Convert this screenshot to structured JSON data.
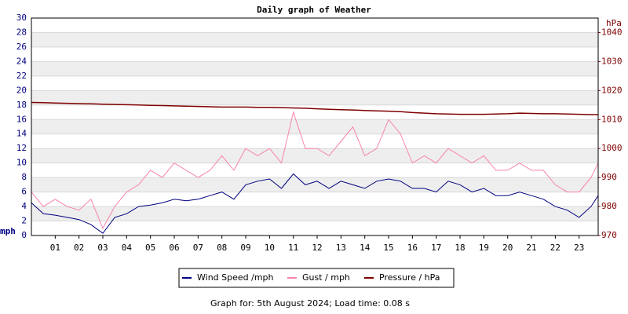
{
  "chart_data": {
    "type": "line",
    "title": "Daily graph of Weather",
    "footer": "Graph for: 5th August 2024; Load time: 0.08 s",
    "y_label": "mph",
    "y2_label": "hPa",
    "x": [
      0,
      0.5,
      1,
      1.5,
      2,
      2.5,
      3,
      3.5,
      4,
      4.5,
      5,
      5.5,
      6,
      6.5,
      7,
      7.5,
      8,
      8.5,
      9,
      9.5,
      10,
      10.5,
      11,
      11.5,
      12,
      12.5,
      13,
      13.5,
      14,
      14.5,
      15,
      15.5,
      16,
      16.5,
      17,
      17.5,
      18,
      18.5,
      19,
      19.5,
      20,
      20.5,
      21,
      21.5,
      22,
      22.5,
      23,
      23.5,
      23.8
    ],
    "xlim": [
      0,
      23.8
    ],
    "xticks": [
      {
        "value": 1,
        "label": "01"
      },
      {
        "value": 2,
        "label": "02"
      },
      {
        "value": 3,
        "label": "03"
      },
      {
        "value": 4,
        "label": "04"
      },
      {
        "value": 5,
        "label": "05"
      },
      {
        "value": 6,
        "label": "06"
      },
      {
        "value": 7,
        "label": "07"
      },
      {
        "value": 8,
        "label": "08"
      },
      {
        "value": 9,
        "label": "09"
      },
      {
        "value": 10,
        "label": "10"
      },
      {
        "value": 11,
        "label": "11"
      },
      {
        "value": 12,
        "label": "12"
      },
      {
        "value": 13,
        "label": "13"
      },
      {
        "value": 14,
        "label": "14"
      },
      {
        "value": 15,
        "label": "15"
      },
      {
        "value": 16,
        "label": "16"
      },
      {
        "value": 17,
        "label": "17"
      },
      {
        "value": 18,
        "label": "18"
      },
      {
        "value": 19,
        "label": "19"
      },
      {
        "value": 20,
        "label": "20"
      },
      {
        "value": 21,
        "label": "21"
      },
      {
        "value": 22,
        "label": "22"
      },
      {
        "value": 23,
        "label": "23"
      }
    ],
    "ylim": [
      0,
      30
    ],
    "yticks": [
      0,
      2,
      4,
      6,
      8,
      10,
      12,
      14,
      16,
      18,
      20,
      22,
      24,
      26,
      28,
      30
    ],
    "y2lim": [
      970,
      1045
    ],
    "y2ticks": [
      970,
      980,
      990,
      1000,
      1010,
      1020,
      1030,
      1040
    ],
    "grid": true,
    "series": [
      {
        "name": "Gust / mph",
        "color": "#f783ad",
        "values": [
          6,
          4,
          5,
          4,
          3.5,
          5,
          1,
          4,
          6,
          7,
          9,
          8,
          10,
          9,
          8,
          9,
          11,
          9,
          12,
          11,
          12,
          10,
          17,
          12,
          12,
          11,
          13,
          15,
          11,
          12,
          16,
          14,
          10,
          11,
          10,
          12,
          11,
          10,
          11,
          9,
          9,
          10,
          9,
          9,
          7,
          6,
          6,
          8,
          10
        ]
      },
      {
        "name": "Wind Speed /mph",
        "color": "#000080",
        "values": [
          4.5,
          3,
          2.8,
          2.5,
          2.2,
          1.5,
          0.3,
          2.5,
          3,
          4,
          4.2,
          4.5,
          5,
          4.8,
          5,
          5.5,
          6,
          5,
          7,
          7.5,
          7.8,
          6.5,
          8.5,
          7,
          7.5,
          6.5,
          7.5,
          7,
          6.5,
          7.5,
          7.8,
          7.5,
          6.5,
          6.5,
          6,
          7.5,
          7,
          6,
          6.5,
          5.5,
          5.5,
          6,
          5.5,
          5,
          4,
          3.5,
          2.5,
          4,
          5.5
        ]
      },
      {
        "name": "Pressure / hPa",
        "color": "#800000",
        "axis": "y2",
        "values": [
          1015.9,
          1015.8,
          1015.7,
          1015.6,
          1015.5,
          1015.4,
          1015.3,
          1015.2,
          1015.1,
          1015,
          1014.9,
          1014.8,
          1014.7,
          1014.6,
          1014.5,
          1014.4,
          1014.3,
          1014.3,
          1014.3,
          1014.2,
          1014.2,
          1014.1,
          1014,
          1013.9,
          1013.7,
          1013.5,
          1013.4,
          1013.3,
          1013.1,
          1013,
          1012.9,
          1012.7,
          1012.4,
          1012.2,
          1012,
          1011.9,
          1011.8,
          1011.8,
          1011.8,
          1011.9,
          1012,
          1012.2,
          1012.1,
          1012,
          1012,
          1011.9,
          1011.8,
          1011.7,
          1011.7
        ]
      }
    ],
    "legend_order": [
      1,
      0,
      2
    ]
  }
}
